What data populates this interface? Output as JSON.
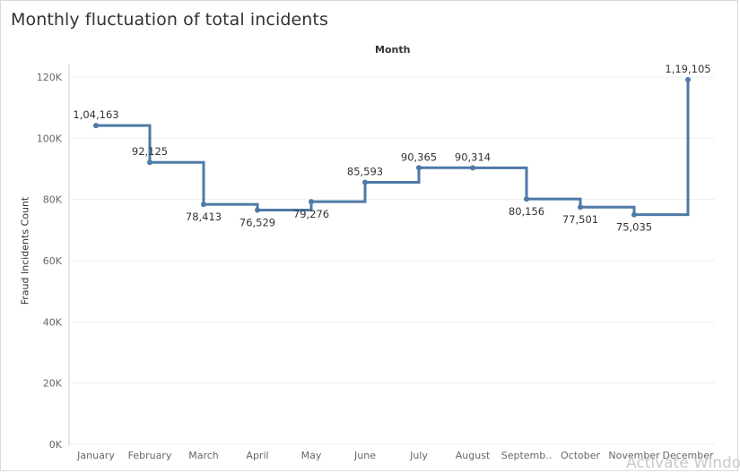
{
  "title": "Monthly fluctuation of total incidents",
  "watermark": "Activate Windo",
  "chart_data": {
    "type": "line",
    "subtype": "step",
    "title": "Monthly fluctuation of total incidents",
    "xlabel": "Month",
    "ylabel": "Fraud Incidents Count",
    "categories": [
      "January",
      "February",
      "March",
      "April",
      "May",
      "June",
      "July",
      "August",
      "Septemb..",
      "October",
      "November",
      "December"
    ],
    "values": [
      104163,
      92125,
      78413,
      76529,
      79276,
      85593,
      90365,
      90314,
      80156,
      77501,
      75035,
      119105
    ],
    "labels": [
      "1,04,163",
      "92,125",
      "78,413",
      "76,529",
      "79,276",
      "85,593",
      "90,365",
      "90,314",
      "80,156",
      "77,501",
      "75,035",
      "1,19,105"
    ],
    "label_positions": [
      "above",
      "above",
      "below",
      "below",
      "below",
      "above",
      "above",
      "above",
      "below",
      "below",
      "below",
      "above"
    ],
    "ylim": [
      0,
      120000
    ],
    "yticks": [
      0,
      20000,
      40000,
      60000,
      80000,
      100000,
      120000
    ],
    "ytick_labels": [
      "0K",
      "20K",
      "40K",
      "60K",
      "80K",
      "100K",
      "120K"
    ],
    "grid": true,
    "colors": {
      "line": "#4e79a7",
      "grid": "#eeeeee",
      "axis": "#cccccc"
    }
  }
}
